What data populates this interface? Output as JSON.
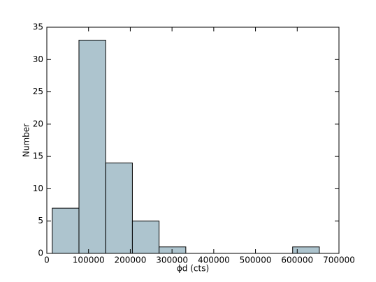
{
  "chart_data": {
    "type": "histogram",
    "xlabel": "ϕd (cts)",
    "ylabel": "Number",
    "bins": [
      13000,
      77000,
      141000,
      205000,
      269000,
      333000,
      397000,
      461000,
      525000,
      589000,
      653000
    ],
    "values": [
      7,
      33,
      14,
      5,
      1,
      0,
      0,
      0,
      0,
      1
    ],
    "color": "#adc4ce",
    "xlim": [
      0,
      700000
    ],
    "xticks": [
      0,
      100000,
      200000,
      300000,
      400000,
      500000,
      600000,
      700000
    ],
    "ylim": [
      0,
      35
    ],
    "yticks": [
      0,
      5,
      10,
      15,
      20,
      25,
      30,
      35
    ]
  }
}
